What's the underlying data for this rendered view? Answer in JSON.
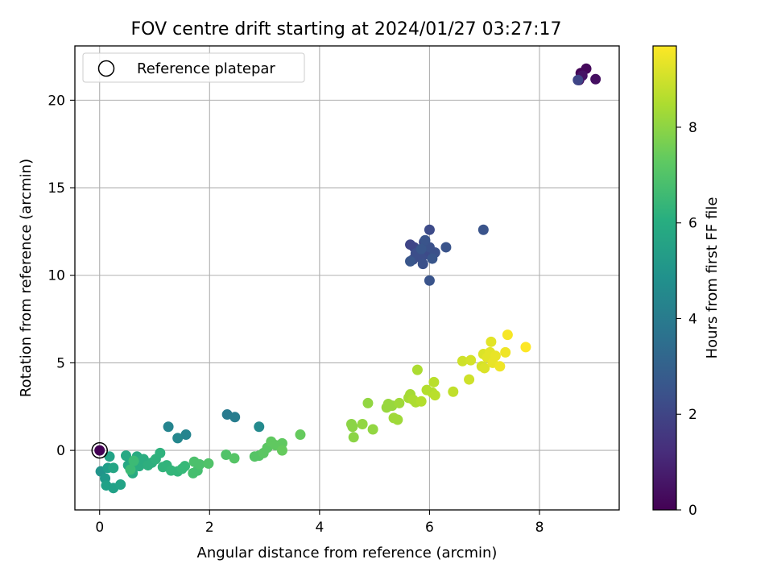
{
  "chart_data": {
    "type": "scatter",
    "title": "FOV centre drift starting at 2024/01/27 03:27:17",
    "xlabel": "Angular distance from reference (arcmin)",
    "ylabel": "Rotation from reference (arcmin)",
    "xlim": [
      -0.45,
      9.45
    ],
    "ylim": [
      -3.4,
      23.1
    ],
    "xticks": [
      0,
      2,
      4,
      6,
      8
    ],
    "yticks": [
      0,
      5,
      10,
      15,
      20
    ],
    "grid": true,
    "legend": {
      "position": "top-left",
      "entries": [
        "Reference platepar"
      ]
    },
    "reference_point": {
      "x": 0,
      "y": 0
    },
    "colorbar": {
      "label": "Hours from first FF file",
      "range": [
        0,
        9.7
      ],
      "ticks": [
        0,
        2,
        4,
        6,
        8
      ],
      "colormap": "viridis"
    },
    "points": [
      {
        "x": 8.75,
        "y": 21.55,
        "c": 0.1
      },
      {
        "x": 8.85,
        "y": 21.8,
        "c": 0.2
      },
      {
        "x": 8.72,
        "y": 21.15,
        "c": 0.3
      },
      {
        "x": 9.02,
        "y": 21.2,
        "c": 0.4
      },
      {
        "x": 8.78,
        "y": 21.4,
        "c": 0.5
      },
      {
        "x": 8.7,
        "y": 21.15,
        "c": 2.0
      },
      {
        "x": 5.65,
        "y": 11.75,
        "c": 2.0
      },
      {
        "x": 5.72,
        "y": 11.6,
        "c": 2.0
      },
      {
        "x": 5.8,
        "y": 11.4,
        "c": 2.1
      },
      {
        "x": 5.9,
        "y": 11.9,
        "c": 2.1
      },
      {
        "x": 6.0,
        "y": 12.6,
        "c": 2.2
      },
      {
        "x": 5.95,
        "y": 11.2,
        "c": 2.2
      },
      {
        "x": 6.05,
        "y": 11.1,
        "c": 2.2
      },
      {
        "x": 5.85,
        "y": 11.0,
        "c": 2.3
      },
      {
        "x": 5.7,
        "y": 10.9,
        "c": 2.3
      },
      {
        "x": 5.75,
        "y": 11.25,
        "c": 2.3
      },
      {
        "x": 6.1,
        "y": 11.3,
        "c": 2.4
      },
      {
        "x": 5.88,
        "y": 10.65,
        "c": 2.4
      },
      {
        "x": 6.0,
        "y": 11.6,
        "c": 2.4
      },
      {
        "x": 5.92,
        "y": 12.0,
        "c": 2.5
      },
      {
        "x": 6.3,
        "y": 11.6,
        "c": 2.5
      },
      {
        "x": 6.0,
        "y": 9.7,
        "c": 2.5
      },
      {
        "x": 6.98,
        "y": 12.6,
        "c": 2.5
      },
      {
        "x": 5.65,
        "y": 10.8,
        "c": 2.6
      },
      {
        "x": 6.05,
        "y": 10.95,
        "c": 2.6
      },
      {
        "x": 5.85,
        "y": 11.5,
        "c": 2.6
      },
      {
        "x": 2.32,
        "y": 2.05,
        "c": 4.0
      },
      {
        "x": 2.46,
        "y": 1.9,
        "c": 4.1
      },
      {
        "x": 1.25,
        "y": 1.35,
        "c": 4.4
      },
      {
        "x": 1.57,
        "y": 0.9,
        "c": 4.4
      },
      {
        "x": 1.42,
        "y": 0.7,
        "c": 4.5
      },
      {
        "x": 2.9,
        "y": 1.35,
        "c": 4.6
      },
      {
        "x": 0.02,
        "y": -1.2,
        "c": 5.0
      },
      {
        "x": 0.1,
        "y": -1.6,
        "c": 5.2
      },
      {
        "x": 0.15,
        "y": -1.0,
        "c": 5.4
      },
      {
        "x": 0.12,
        "y": -2.0,
        "c": 5.5
      },
      {
        "x": 0.25,
        "y": -2.15,
        "c": 5.5
      },
      {
        "x": 0.38,
        "y": -1.95,
        "c": 5.6
      },
      {
        "x": 0.18,
        "y": -0.35,
        "c": 5.6
      },
      {
        "x": 0.25,
        "y": -1.0,
        "c": 5.7
      },
      {
        "x": 0.48,
        "y": -0.3,
        "c": 5.8
      },
      {
        "x": 0.52,
        "y": -0.85,
        "c": 5.8
      },
      {
        "x": 0.6,
        "y": -1.3,
        "c": 5.9
      },
      {
        "x": 0.68,
        "y": -0.35,
        "c": 5.9
      },
      {
        "x": 0.72,
        "y": -0.9,
        "c": 6.0
      },
      {
        "x": 0.8,
        "y": -0.5,
        "c": 6.0
      },
      {
        "x": 0.88,
        "y": -0.85,
        "c": 6.1
      },
      {
        "x": 0.95,
        "y": -0.7,
        "c": 6.1
      },
      {
        "x": 1.02,
        "y": -0.5,
        "c": 6.2
      },
      {
        "x": 1.1,
        "y": -0.15,
        "c": 6.2
      },
      {
        "x": 1.15,
        "y": -0.95,
        "c": 6.3
      },
      {
        "x": 1.22,
        "y": -0.85,
        "c": 6.3
      },
      {
        "x": 1.3,
        "y": -1.15,
        "c": 6.4
      },
      {
        "x": 1.42,
        "y": -1.2,
        "c": 6.4
      },
      {
        "x": 1.5,
        "y": -1.05,
        "c": 6.5
      },
      {
        "x": 1.55,
        "y": -0.9,
        "c": 6.5
      },
      {
        "x": 0.62,
        "y": -0.6,
        "c": 6.6
      },
      {
        "x": 0.56,
        "y": -1.1,
        "c": 6.6
      },
      {
        "x": 1.7,
        "y": -1.3,
        "c": 6.8
      },
      {
        "x": 1.78,
        "y": -1.15,
        "c": 6.8
      },
      {
        "x": 1.72,
        "y": -0.65,
        "c": 6.9
      },
      {
        "x": 1.82,
        "y": -0.8,
        "c": 6.9
      },
      {
        "x": 1.98,
        "y": -0.75,
        "c": 7.0
      },
      {
        "x": 2.3,
        "y": -0.25,
        "c": 7.0
      },
      {
        "x": 2.45,
        "y": -0.45,
        "c": 7.1
      },
      {
        "x": 2.82,
        "y": -0.35,
        "c": 7.1
      },
      {
        "x": 2.9,
        "y": -0.3,
        "c": 7.1
      },
      {
        "x": 2.98,
        "y": -0.15,
        "c": 7.2
      },
      {
        "x": 3.05,
        "y": 0.15,
        "c": 7.2
      },
      {
        "x": 3.12,
        "y": 0.5,
        "c": 7.3
      },
      {
        "x": 3.2,
        "y": 0.3,
        "c": 7.3
      },
      {
        "x": 3.32,
        "y": 0.4,
        "c": 7.3
      },
      {
        "x": 3.32,
        "y": 0.0,
        "c": 7.4
      },
      {
        "x": 3.65,
        "y": 0.9,
        "c": 7.4
      },
      {
        "x": 4.58,
        "y": 1.5,
        "c": 8.0
      },
      {
        "x": 4.6,
        "y": 1.35,
        "c": 8.0
      },
      {
        "x": 4.62,
        "y": 0.75,
        "c": 8.0
      },
      {
        "x": 4.78,
        "y": 1.5,
        "c": 8.1
      },
      {
        "x": 4.88,
        "y": 2.7,
        "c": 8.1
      },
      {
        "x": 4.97,
        "y": 1.2,
        "c": 8.1
      },
      {
        "x": 5.22,
        "y": 2.45,
        "c": 8.2
      },
      {
        "x": 5.25,
        "y": 2.65,
        "c": 8.2
      },
      {
        "x": 5.32,
        "y": 2.55,
        "c": 8.2
      },
      {
        "x": 5.35,
        "y": 1.85,
        "c": 8.3
      },
      {
        "x": 5.42,
        "y": 1.75,
        "c": 8.3
      },
      {
        "x": 5.45,
        "y": 2.7,
        "c": 8.3
      },
      {
        "x": 5.62,
        "y": 3.0,
        "c": 8.4
      },
      {
        "x": 5.65,
        "y": 3.2,
        "c": 8.4
      },
      {
        "x": 5.7,
        "y": 2.9,
        "c": 8.5
      },
      {
        "x": 5.75,
        "y": 2.75,
        "c": 8.5
      },
      {
        "x": 5.78,
        "y": 4.6,
        "c": 8.5
      },
      {
        "x": 5.85,
        "y": 2.8,
        "c": 8.6
      },
      {
        "x": 5.95,
        "y": 3.45,
        "c": 8.6
      },
      {
        "x": 6.05,
        "y": 3.3,
        "c": 8.6
      },
      {
        "x": 6.08,
        "y": 3.9,
        "c": 8.7
      },
      {
        "x": 6.1,
        "y": 3.15,
        "c": 8.7
      },
      {
        "x": 6.43,
        "y": 3.35,
        "c": 8.8
      },
      {
        "x": 6.6,
        "y": 5.1,
        "c": 9.0
      },
      {
        "x": 6.72,
        "y": 4.05,
        "c": 9.0
      },
      {
        "x": 6.75,
        "y": 5.15,
        "c": 9.1
      },
      {
        "x": 6.95,
        "y": 4.8,
        "c": 9.1
      },
      {
        "x": 6.98,
        "y": 5.5,
        "c": 9.2
      },
      {
        "x": 7.0,
        "y": 4.7,
        "c": 9.2
      },
      {
        "x": 7.05,
        "y": 5.3,
        "c": 9.3
      },
      {
        "x": 7.1,
        "y": 5.6,
        "c": 9.3
      },
      {
        "x": 7.12,
        "y": 6.2,
        "c": 9.3
      },
      {
        "x": 7.15,
        "y": 5.0,
        "c": 9.4
      },
      {
        "x": 7.2,
        "y": 5.4,
        "c": 9.4
      },
      {
        "x": 7.28,
        "y": 4.8,
        "c": 9.5
      },
      {
        "x": 7.38,
        "y": 5.6,
        "c": 9.5
      },
      {
        "x": 7.42,
        "y": 6.6,
        "c": 9.6
      },
      {
        "x": 7.75,
        "y": 5.9,
        "c": 9.7
      }
    ]
  }
}
